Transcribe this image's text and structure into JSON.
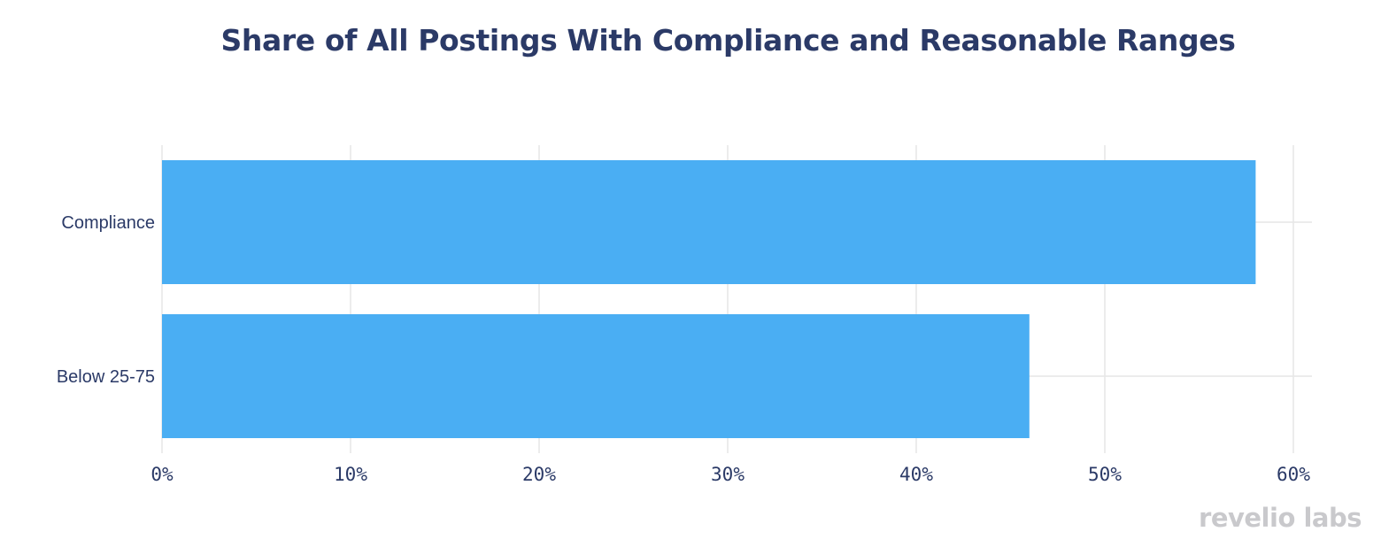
{
  "chart_data": {
    "type": "bar",
    "orientation": "horizontal",
    "title": "Share of All Postings With Compliance and Reasonable Ranges",
    "categories": [
      "Compliance",
      "Below 25-75"
    ],
    "values": [
      58,
      46
    ],
    "unit": "%",
    "xlim": [
      0,
      60
    ],
    "xticks": [
      0,
      10,
      20,
      30,
      40,
      50,
      60
    ],
    "tick_labels": [
      "0%",
      "10%",
      "20%",
      "30%",
      "40%",
      "50%",
      "60%"
    ],
    "grid": true,
    "bar_color": "#4aaef3",
    "grid_color": "#e6e6e6",
    "text_color": "#2b3a67"
  },
  "brand": {
    "logo_text": "revelio labs"
  }
}
